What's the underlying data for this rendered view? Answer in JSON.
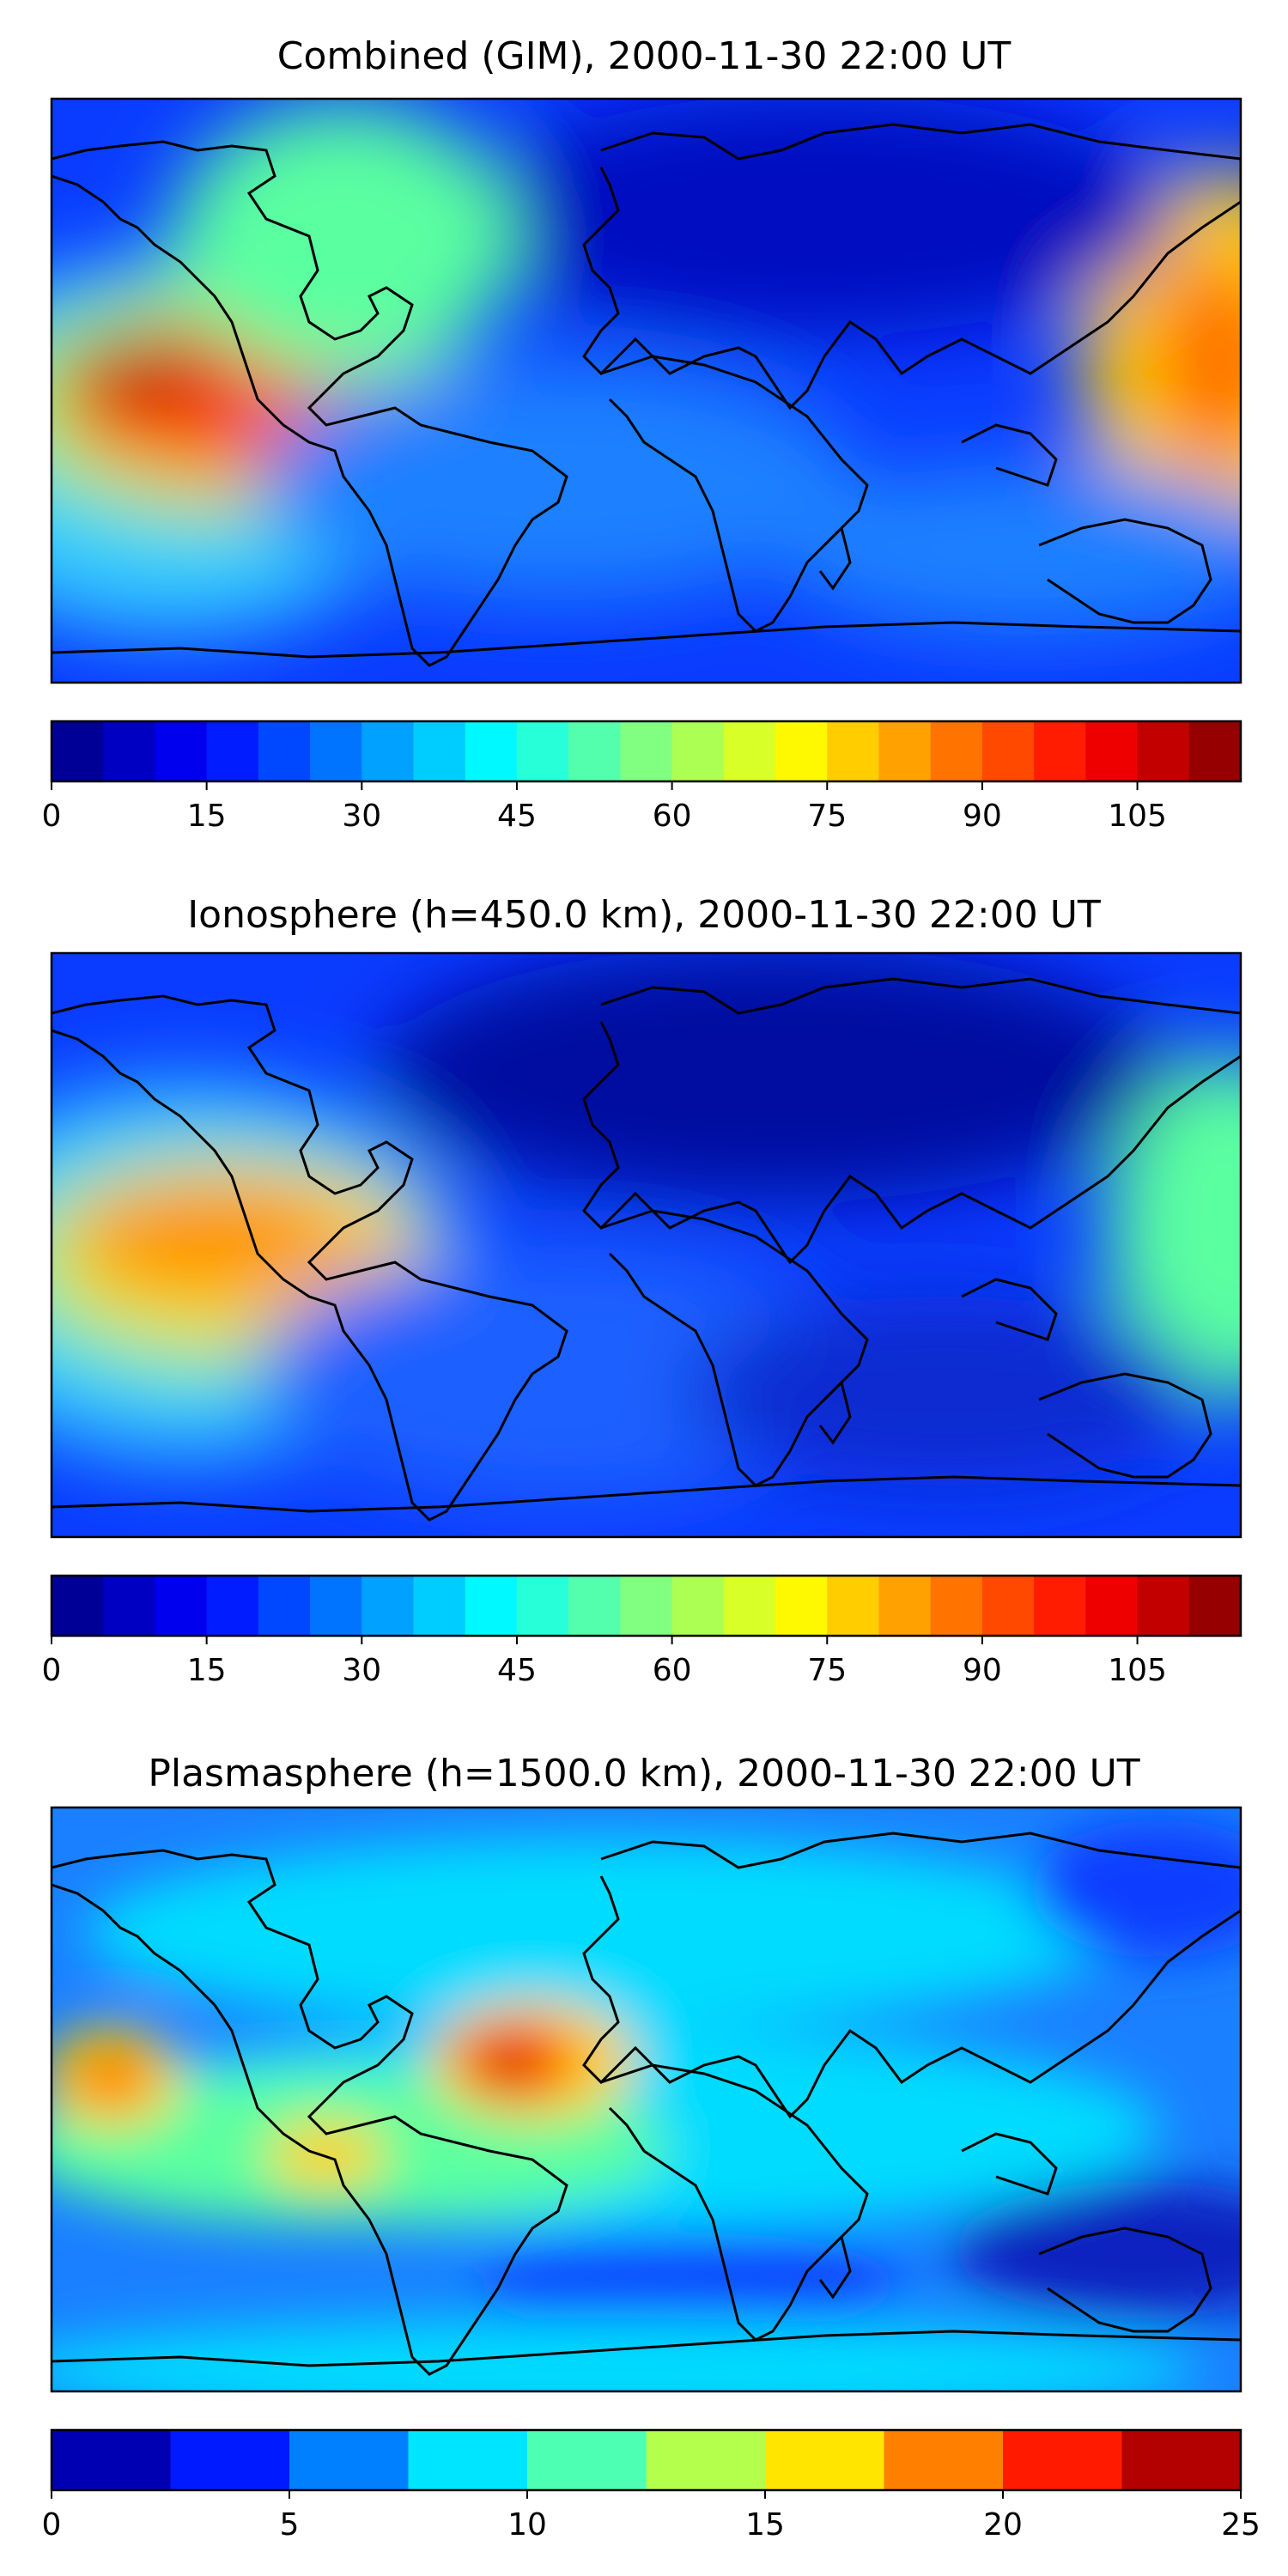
{
  "panels": [
    {
      "title": "Combined (GIM), 2000-11-30 22:00 UT",
      "colorbar": {
        "min": 0,
        "max": 115,
        "step": 5,
        "ticks": [
          "0",
          "15",
          "30",
          "45",
          "60",
          "75",
          "90",
          "105"
        ],
        "tick_values": [
          0,
          15,
          30,
          45,
          60,
          75,
          90,
          105
        ]
      }
    },
    {
      "title": "Ionosphere  (h=450.0 km), 2000-11-30 22:00 UT",
      "colorbar": {
        "min": 0,
        "max": 115,
        "step": 5,
        "ticks": [
          "0",
          "15",
          "30",
          "45",
          "60",
          "75",
          "90",
          "105"
        ],
        "tick_values": [
          0,
          15,
          30,
          45,
          60,
          75,
          90,
          105
        ]
      }
    },
    {
      "title": "Plasmasphere (h=1500.0 km), 2000-11-30 22:00 UT",
      "colorbar": {
        "min": 0,
        "max": 25,
        "step": 2.5,
        "ticks": [
          "0",
          "5",
          "10",
          "15",
          "20",
          "25"
        ],
        "tick_values": [
          0,
          5,
          10,
          15,
          20,
          25
        ]
      }
    }
  ],
  "colormap": "jet"
}
